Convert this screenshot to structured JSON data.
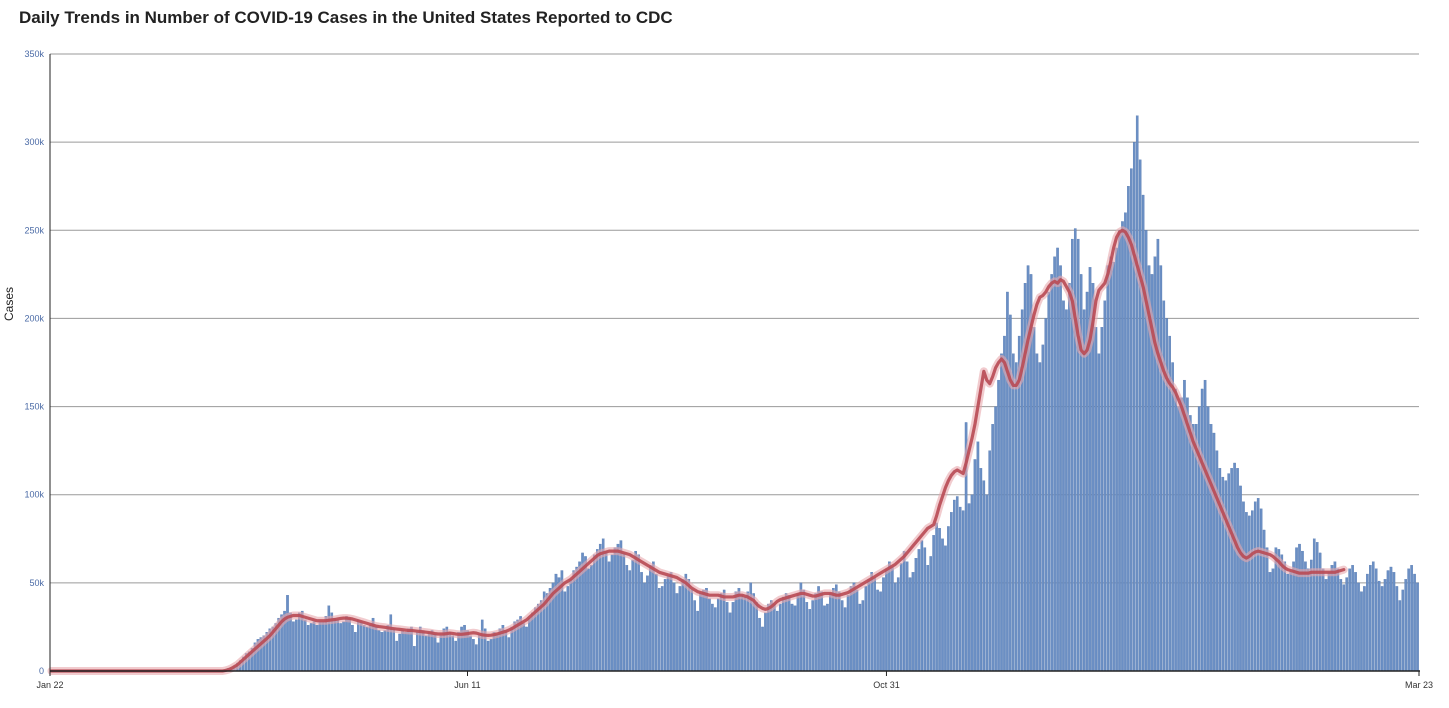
{
  "chart_data": {
    "type": "bar",
    "title": "Daily Trends in Number of COVID-19 Cases in the United States Reported to CDC",
    "ylabel": "Cases",
    "xlabel": "",
    "x_tick_labels": [
      "Jan 22",
      "Jun 11",
      "Oct 31",
      "Mar 23"
    ],
    "y_tick_labels": [
      "0",
      "50k",
      "100k",
      "150k",
      "200k",
      "250k",
      "300k",
      "350k"
    ],
    "ylim": [
      0,
      350000
    ],
    "grid": true,
    "colors": {
      "bars": "#6b8fc4",
      "bar_edge": "#4f74ad",
      "line": "#b84a54",
      "line_halo": "#e8a8ae",
      "grid": "#9a9a9a"
    },
    "series": [
      {
        "kind": "bar",
        "note": "daily reported cases, approximate, one value per day from Jan 22 to Mar 23",
        "values": [
          0,
          0,
          0,
          0,
          0,
          0,
          0,
          0,
          0,
          0,
          0,
          0,
          0,
          0,
          0,
          0,
          0,
          0,
          0,
          0,
          0,
          0,
          0,
          0,
          0,
          0,
          0,
          0,
          0,
          0,
          0,
          0,
          0,
          0,
          0,
          0,
          0,
          0,
          0,
          0,
          0,
          0,
          0,
          0,
          0,
          0,
          0,
          0,
          0,
          0,
          0,
          0,
          0,
          0,
          0,
          0,
          0,
          0,
          0,
          1000,
          1500,
          2000,
          3000,
          4500,
          6000,
          8000,
          10000,
          11000,
          13000,
          16000,
          18000,
          19000,
          20000,
          22000,
          24000,
          25000,
          27000,
          30000,
          32000,
          34000,
          43000,
          33000,
          28000,
          29000,
          33000,
          34000,
          29000,
          26000,
          27000,
          28000,
          26000,
          28000,
          28000,
          31000,
          37000,
          33000,
          30000,
          29000,
          27000,
          28000,
          31000,
          30000,
          26000,
          22000,
          29000,
          28000,
          26000,
          25000,
          26000,
          30000,
          25000,
          23000,
          22000,
          23000,
          26000,
          32000,
          24000,
          17000,
          21000,
          23000,
          22000,
          24000,
          25000,
          14000,
          22000,
          25000,
          23000,
          20000,
          22000,
          23000,
          21000,
          16000,
          20000,
          24000,
          25000,
          22000,
          20000,
          17000,
          22000,
          25000,
          26000,
          23000,
          20000,
          18000,
          15000,
          21000,
          29000,
          24000,
          17000,
          18000,
          22000,
          21000,
          24000,
          26000,
          23000,
          19000,
          25000,
          28000,
          29000,
          31000,
          27000,
          25000,
          30000,
          33000,
          36000,
          38000,
          40000,
          45000,
          44000,
          47000,
          50000,
          55000,
          53000,
          57000,
          45000,
          48000,
          52000,
          57000,
          59000,
          62000,
          67000,
          65000,
          58000,
          60000,
          66000,
          69000,
          72000,
          75000,
          68000,
          62000,
          66000,
          70000,
          72000,
          74000,
          67000,
          60000,
          57000,
          63000,
          68000,
          66000,
          56000,
          50000,
          54000,
          60000,
          62000,
          55000,
          47000,
          48000,
          52000,
          54000,
          56000,
          50000,
          44000,
          48000,
          52000,
          55000,
          52000,
          46000,
          40000,
          34000,
          44000,
          46000,
          47000,
          41000,
          38000,
          36000,
          41000,
          44000,
          46000,
          39000,
          33000,
          39000,
          45000,
          47000,
          43000,
          42000,
          45000,
          50000,
          44000,
          39000,
          30000,
          25000,
          33000,
          38000,
          40000,
          38000,
          34000,
          38000,
          42000,
          44000,
          43000,
          38000,
          37000,
          44000,
          50000,
          46000,
          39000,
          35000,
          40000,
          44000,
          48000,
          45000,
          37000,
          38000,
          44000,
          47000,
          49000,
          45000,
          40000,
          36000,
          43000,
          48000,
          50000,
          46000,
          38000,
          40000,
          48000,
          52000,
          56000,
          53000,
          46000,
          45000,
          53000,
          58000,
          62000,
          59000,
          50000,
          53000,
          61000,
          68000,
          62000,
          53000,
          56000,
          64000,
          69000,
          74000,
          70000,
          60000,
          65000,
          77000,
          84000,
          81000,
          75000,
          71000,
          82000,
          90000,
          97000,
          99000,
          93000,
          91000,
          141000,
          95000,
          100000,
          120000,
          130000,
          115000,
          108000,
          100000,
          125000,
          140000,
          150000,
          165000,
          180000,
          190000,
          215000,
          202000,
          180000,
          175000,
          190000,
          205000,
          220000,
          230000,
          225000,
          195000,
          180000,
          175000,
          185000,
          200000,
          215000,
          225000,
          235000,
          240000,
          230000,
          210000,
          205000,
          220000,
          245000,
          251000,
          245000,
          225000,
          205000,
          215000,
          229000,
          220000,
          195000,
          180000,
          195000,
          210000,
          230000,
          235000,
          232000,
          240000,
          250000,
          255000,
          260000,
          275000,
          285000,
          300000,
          315000,
          290000,
          270000,
          250000,
          230000,
          225000,
          235000,
          245000,
          230000,
          210000,
          200000,
          190000,
          175000,
          160000,
          150000,
          155000,
          165000,
          155000,
          145000,
          140000,
          140000,
          150000,
          160000,
          165000,
          150000,
          140000,
          135000,
          125000,
          115000,
          110000,
          108000,
          112000,
          115000,
          118000,
          115000,
          105000,
          96000,
          90000,
          88000,
          91000,
          96000,
          98000,
          92000,
          80000,
          70000,
          56000,
          58000,
          70000,
          69000,
          66000,
          62000,
          55000,
          56000,
          62000,
          70000,
          72000,
          68000,
          62000,
          58000,
          63000,
          75000,
          73000,
          67000,
          58000,
          52000,
          56000,
          60000,
          62000,
          58000,
          52000,
          49000,
          53000,
          58000,
          60000,
          56000,
          50000,
          45000,
          48000,
          55000,
          60000,
          62000,
          58000,
          51000,
          48000,
          52000,
          57000,
          59000,
          56000,
          48000,
          40000,
          46000,
          52000,
          58000,
          60000,
          55000,
          50000
        ]
      },
      {
        "kind": "line",
        "note": "7-day moving average, approximate",
        "values": [
          0,
          0,
          0,
          0,
          0,
          0,
          0,
          0,
          0,
          0,
          0,
          0,
          0,
          0,
          0,
          0,
          0,
          0,
          0,
          0,
          0,
          0,
          0,
          0,
          0,
          0,
          0,
          0,
          0,
          0,
          0,
          0,
          0,
          0,
          0,
          0,
          0,
          0,
          0,
          0,
          0,
          0,
          0,
          0,
          0,
          0,
          0,
          0,
          0,
          0,
          0,
          0,
          0,
          0,
          0,
          0,
          0,
          0,
          0,
          300,
          800,
          1500,
          2500,
          3500,
          5000,
          6500,
          8000,
          9500,
          11000,
          12500,
          14000,
          15500,
          17000,
          18500,
          20000,
          22000,
          24000,
          26000,
          28000,
          29500,
          30500,
          31000,
          31500,
          31500,
          31500,
          31000,
          30500,
          30000,
          29500,
          29000,
          28500,
          28500,
          28500,
          28500,
          28800,
          29000,
          29200,
          29500,
          29800,
          30000,
          30000,
          29800,
          29500,
          29000,
          28500,
          28000,
          27500,
          27000,
          26500,
          26000,
          25500,
          25200,
          25000,
          24800,
          24500,
          24200,
          24000,
          23800,
          23600,
          23400,
          23200,
          23000,
          23000,
          22800,
          22600,
          22400,
          22200,
          22000,
          21800,
          21500,
          21200,
          21000,
          21000,
          21000,
          21200,
          21500,
          21300,
          21000,
          20800,
          20800,
          21000,
          21200,
          21500,
          21700,
          21500,
          21000,
          20500,
          20300,
          20200,
          20300,
          20600,
          21000,
          21500,
          22000,
          22500,
          23200,
          24000,
          25000,
          26000,
          27000,
          28000,
          29000,
          30500,
          32000,
          33500,
          35000,
          36500,
          38000,
          40000,
          42000,
          44000,
          45500,
          47000,
          48500,
          50000,
          51000,
          52000,
          53500,
          55000,
          56500,
          58000,
          59500,
          61000,
          62500,
          64000,
          65500,
          66500,
          67000,
          67500,
          68000,
          68000,
          68000,
          68000,
          67500,
          67000,
          66500,
          66000,
          65000,
          64000,
          63000,
          62000,
          61000,
          60000,
          59000,
          58000,
          57000,
          56000,
          55500,
          55000,
          54500,
          54000,
          53500,
          53000,
          52000,
          51000,
          50000,
          48500,
          47000,
          46000,
          45000,
          44500,
          44000,
          43500,
          43000,
          43000,
          43000,
          43000,
          42500,
          42000,
          42000,
          42000,
          42000,
          42500,
          43000,
          43000,
          42500,
          42000,
          41000,
          40000,
          38000,
          36500,
          35500,
          35000,
          35500,
          36500,
          38000,
          39500,
          40500,
          41000,
          41500,
          42000,
          42500,
          43000,
          43500,
          44000,
          44000,
          43500,
          43000,
          42500,
          42500,
          43000,
          43500,
          44000,
          44000,
          44000,
          43500,
          43000,
          43000,
          43500,
          44000,
          44500,
          45500,
          46500,
          47500,
          48500,
          49500,
          50500,
          51500,
          52500,
          53500,
          54500,
          55500,
          56500,
          57500,
          58500,
          59500,
          60500,
          62000,
          63500,
          65000,
          67000,
          69000,
          71000,
          73000,
          75000,
          77000,
          79000,
          81000,
          82000,
          83000,
          88000,
          94000,
          99000,
          104000,
          108000,
          111000,
          113000,
          114000,
          113000,
          112000,
          118000,
          125000,
          132000,
          140000,
          150000,
          160000,
          170000,
          165000,
          163000,
          167000,
          172000,
          175000,
          177000,
          175000,
          170000,
          165000,
          162000,
          162000,
          165000,
          172000,
          180000,
          188000,
          195000,
          202000,
          208000,
          212000,
          213000,
          215000,
          218000,
          220000,
          221000,
          220000,
          222000,
          221000,
          218000,
          215000,
          210000,
          200000,
          190000,
          182000,
          180000,
          182000,
          188000,
          198000,
          210000,
          216000,
          218000,
          220000,
          225000,
          232000,
          240000,
          246000,
          249000,
          250000,
          249000,
          246000,
          242000,
          236000,
          230000,
          224000,
          218000,
          210000,
          202000,
          194000,
          186000,
          180000,
          175000,
          170000,
          166000,
          163000,
          161000,
          158000,
          154000,
          150000,
          145000,
          140000,
          135000,
          130000,
          126000,
          122000,
          118000,
          114000,
          110000,
          106000,
          102000,
          98000,
          94000,
          90000,
          86000,
          82000,
          78000,
          74000,
          70000,
          67000,
          65000,
          64000,
          65000,
          66500,
          67500,
          68000,
          67500,
          67000,
          66500,
          66000,
          65000,
          63500,
          62000,
          60000,
          58500,
          57500,
          57000,
          56500,
          56000,
          55500,
          55500,
          55500,
          55500,
          56000,
          56000,
          56000,
          56000,
          56000,
          56000,
          56000,
          56000,
          56000,
          56500,
          57000,
          57500
        ]
      }
    ]
  }
}
